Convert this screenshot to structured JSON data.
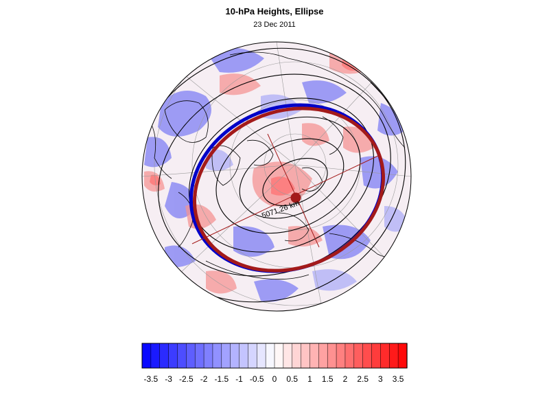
{
  "title": "10-hPa Heights, Ellipse",
  "subtitle": "23 Dec 2011",
  "map": {
    "projection": "north-polar-stereographic",
    "contour_label": "5071.26 km",
    "ellipse_color": "#a31a1a",
    "fit_circle_color": "#0000c8",
    "center_marker_color": "#a31a1a"
  },
  "colorbar": {
    "tick_labels": [
      "-3.5",
      "-3",
      "-2.5",
      "-2",
      "-1.5",
      "-1",
      "-0.5",
      "0",
      "0.5",
      "1",
      "1.5",
      "2",
      "2.5",
      "3",
      "3.5"
    ],
    "min": -3.75,
    "max": 3.75,
    "step": 0.25,
    "colors": {
      "negative_end": "#0000ff",
      "neutral": "#ffffff",
      "positive_end": "#ff0000"
    }
  }
}
